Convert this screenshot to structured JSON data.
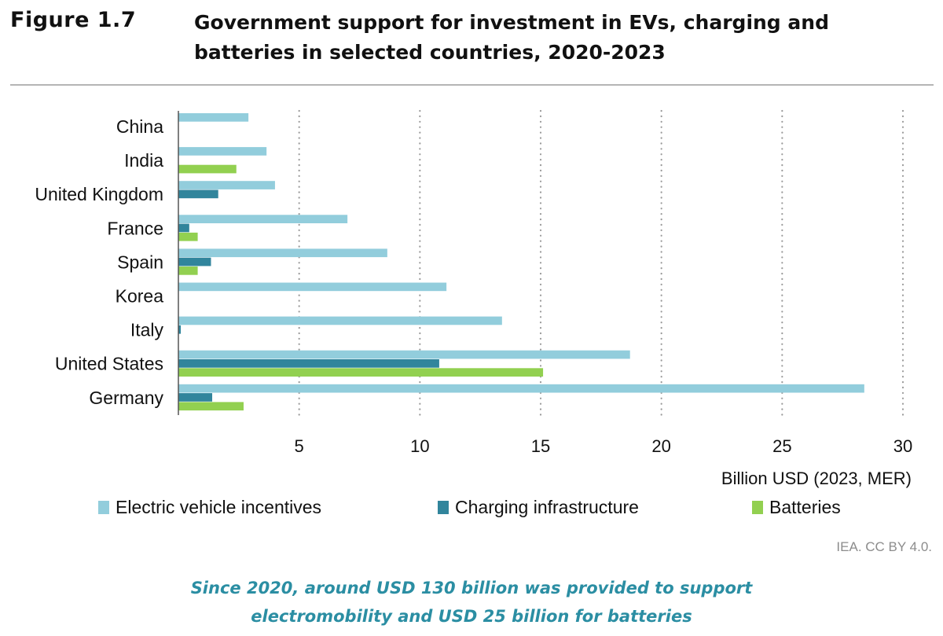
{
  "figure": {
    "label": "Figure 1.7",
    "arrow_icon": "triangle-right-outline",
    "title_line1": "Government support for investment in EVs, charging and",
    "title_line2": "batteries in selected countries, 2020-2023"
  },
  "credit": "IEA. CC BY 4.0.",
  "caption": {
    "line1": "Since 2020, around USD 130 billion was provided to support",
    "line2": "electromobility and USD 25 billion for batteries"
  },
  "chart_data": {
    "type": "bar",
    "orientation": "horizontal",
    "title": "Government support for investment in EVs, charging and batteries in selected countries, 2020-2023",
    "categories": [
      "China",
      "India",
      "United Kingdom",
      "France",
      "Spain",
      "Korea",
      "Italy",
      "United States",
      "Germany"
    ],
    "series": [
      {
        "name": "Electric vehicle incentives",
        "color": "#92cddc",
        "values": [
          2.9,
          3.65,
          4.0,
          7.0,
          8.65,
          11.1,
          13.4,
          18.7,
          28.4
        ]
      },
      {
        "name": "Charging infrastructure",
        "color": "#31859c",
        "values": [
          0,
          0,
          1.65,
          0.45,
          1.35,
          0,
          0.1,
          10.8,
          1.4
        ]
      },
      {
        "name": "Batteries",
        "color": "#92d050",
        "values": [
          0,
          2.4,
          0,
          0.8,
          0.8,
          0,
          0,
          15.1,
          2.7
        ]
      }
    ],
    "xlabel": "Billion USD (2023, MER)",
    "ylabel": "",
    "xlim": [
      0,
      30
    ],
    "xticks": [
      5,
      10,
      15,
      20,
      25,
      30
    ],
    "grid": "vertical dotted",
    "legend": "bottom"
  }
}
